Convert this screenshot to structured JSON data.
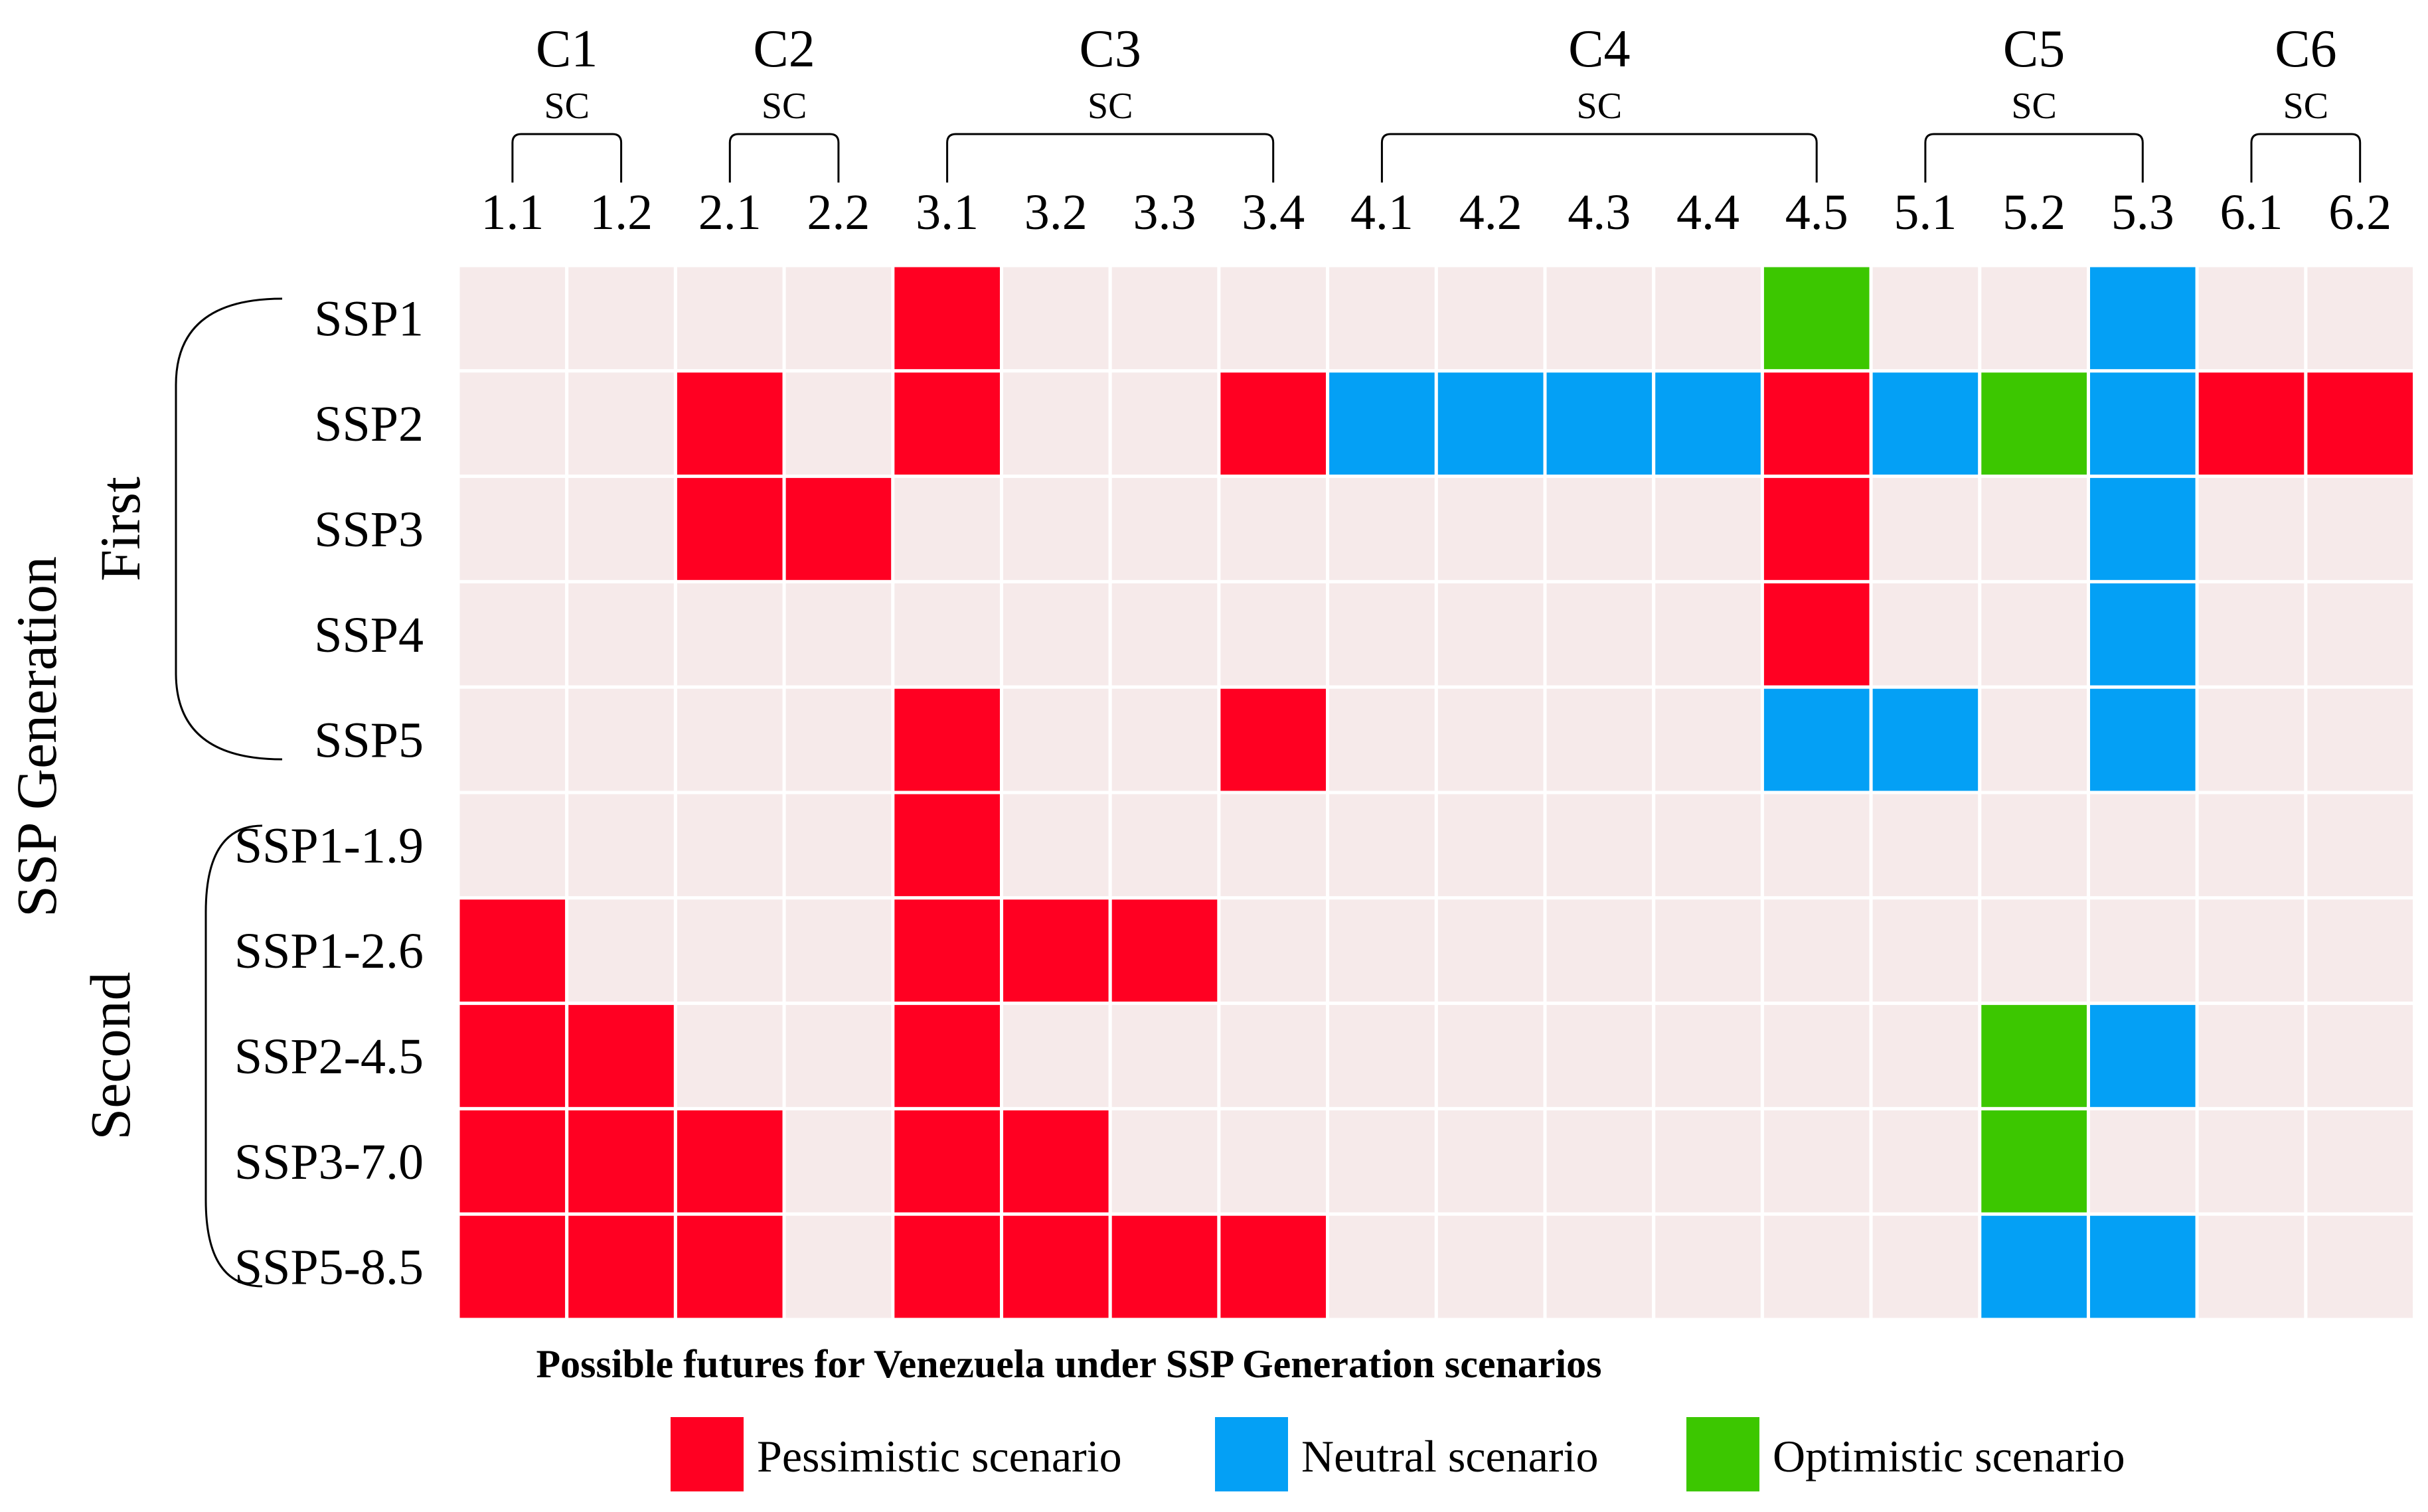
{
  "chart_data": {
    "type": "heatmap",
    "title": "Possible futures for Venezuela under SSP Generation scenarios",
    "y_axis_title": "SSP Generation",
    "groups": [
      {
        "label": "C1",
        "sublabel": "SC",
        "columns": [
          "1.1",
          "1.2"
        ]
      },
      {
        "label": "C2",
        "sublabel": "SC",
        "columns": [
          "2.1",
          "2.2"
        ]
      },
      {
        "label": "C3",
        "sublabel": "SC",
        "columns": [
          "3.1",
          "3.2",
          "3.3",
          "3.4"
        ]
      },
      {
        "label": "C4",
        "sublabel": "SC",
        "columns": [
          "4.1",
          "4.2",
          "4.3",
          "4.4",
          "4.5"
        ]
      },
      {
        "label": "C5",
        "sublabel": "SC",
        "columns": [
          "5.1",
          "5.2",
          "5.3"
        ]
      },
      {
        "label": "C6",
        "sublabel": "SC",
        "columns": [
          "6.1",
          "6.2"
        ]
      }
    ],
    "columns": [
      "1.1",
      "1.2",
      "2.1",
      "2.2",
      "3.1",
      "3.2",
      "3.3",
      "3.4",
      "4.1",
      "4.2",
      "4.3",
      "4.4",
      "4.5",
      "5.1",
      "5.2",
      "5.3",
      "6.1",
      "6.2"
    ],
    "row_groups": [
      {
        "label": "First",
        "rows": [
          "SSP1",
          "SSP2",
          "SSP3",
          "SSP4",
          "SSP5"
        ]
      },
      {
        "label": "Second",
        "rows": [
          "SSP1-1.9",
          "SSP1-2.6",
          "SSP2-4.5",
          "SSP3-7.0",
          "SSP5-8.5"
        ]
      }
    ],
    "rows": [
      "SSP1",
      "SSP2",
      "SSP3",
      "SSP4",
      "SSP5",
      "SSP1-1.9",
      "SSP1-2.6",
      "SSP2-4.5",
      "SSP3-7.0",
      "SSP5-8.5"
    ],
    "cells": [
      [
        "",
        "",
        "",
        "",
        "P",
        "",
        "",
        "",
        "",
        "",
        "",
        "",
        "O",
        "",
        "",
        "N",
        "",
        ""
      ],
      [
        "",
        "",
        "P",
        "",
        "P",
        "",
        "",
        "P",
        "N",
        "N",
        "N",
        "N",
        "P",
        "N",
        "O",
        "N",
        "P",
        "P"
      ],
      [
        "",
        "",
        "P",
        "P",
        "",
        "",
        "",
        "",
        "",
        "",
        "",
        "",
        "P",
        "",
        "",
        "N",
        "",
        ""
      ],
      [
        "",
        "",
        "",
        "",
        "",
        "",
        "",
        "",
        "",
        "",
        "",
        "",
        "P",
        "",
        "",
        "N",
        "",
        ""
      ],
      [
        "",
        "",
        "",
        "",
        "P",
        "",
        "",
        "P",
        "",
        "",
        "",
        "",
        "N",
        "N",
        "",
        "N",
        "",
        ""
      ],
      [
        "",
        "",
        "",
        "",
        "P",
        "",
        "",
        "",
        "",
        "",
        "",
        "",
        "",
        "",
        "",
        "",
        "",
        ""
      ],
      [
        "P",
        "",
        "",
        "",
        "P",
        "P",
        "P",
        "",
        "",
        "",
        "",
        "",
        "",
        "",
        "",
        "",
        "",
        ""
      ],
      [
        "P",
        "P",
        "",
        "",
        "P",
        "",
        "",
        "",
        "",
        "",
        "",
        "",
        "",
        "",
        "O",
        "N",
        "",
        ""
      ],
      [
        "P",
        "P",
        "P",
        "",
        "P",
        "P",
        "",
        "",
        "",
        "",
        "",
        "",
        "",
        "",
        "O",
        "",
        "",
        ""
      ],
      [
        "P",
        "P",
        "P",
        "",
        "P",
        "P",
        "P",
        "P",
        "",
        "",
        "",
        "",
        "",
        "",
        "N",
        "N",
        "",
        ""
      ]
    ],
    "legend": [
      {
        "code": "P",
        "label": "Pessimistic scenario",
        "color": "#ff0022"
      },
      {
        "code": "N",
        "label": "Neutral scenario",
        "color": "#04a0f5"
      },
      {
        "code": "O",
        "label": "Optimistic scenario",
        "color": "#3cc700"
      }
    ],
    "empty_color": "#f6eaea",
    "grid_line_color": "#ffffff"
  }
}
